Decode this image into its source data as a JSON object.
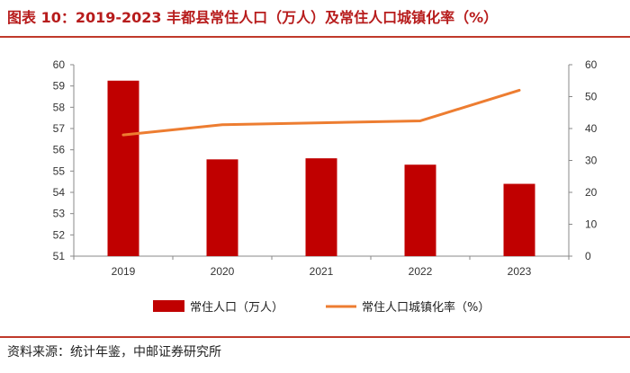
{
  "title": "图表 10：2019-2023 丰都县常住人口（万人）及常住人口城镇化率（%）",
  "source": "资料来源：统计年鉴，中邮证券研究所",
  "chart_data": {
    "type": "bar",
    "title": "图表 10：2019-2023 丰都县常住人口（万人）及常住人口城镇化率（%）",
    "categories": [
      "2019",
      "2020",
      "2021",
      "2022",
      "2023"
    ],
    "series": [
      {
        "name": "常住人口（万人）",
        "type": "bar",
        "axis": "left",
        "color": "#c00000",
        "values": [
          59.25,
          55.55,
          55.6,
          55.3,
          54.4
        ]
      },
      {
        "name": "常住人口城镇化率（%）",
        "type": "line",
        "axis": "right",
        "color": "#ed7d31",
        "values": [
          38.0,
          41.2,
          41.8,
          42.4,
          52.0
        ]
      }
    ],
    "y_left": {
      "min": 51,
      "max": 60,
      "ticks": [
        51,
        52,
        53,
        54,
        55,
        56,
        57,
        58,
        59,
        60
      ]
    },
    "y_right": {
      "min": 0,
      "max": 60,
      "ticks": [
        0,
        10,
        20,
        30,
        40,
        50,
        60
      ]
    },
    "legend_position": "bottom",
    "grid": false
  }
}
